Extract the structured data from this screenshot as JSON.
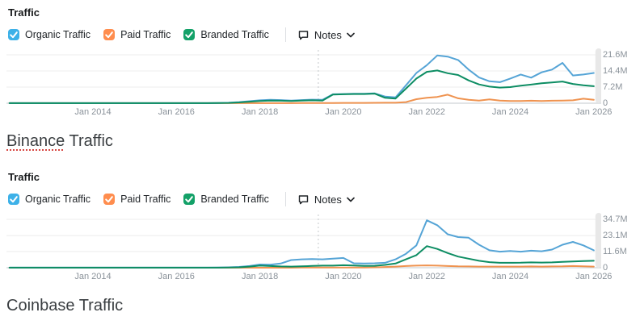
{
  "colors": {
    "organic_checkbox": "#3db1e8",
    "paid_checkbox": "#ff8d4e",
    "branded_checkbox": "#13a168",
    "organic_line": "#55a4d6",
    "paid_line": "#ef9350",
    "branded_line": "#0d8d63",
    "grid": "#ececec",
    "axis_line": "#cfd3d6",
    "axis_text": "#8a929a",
    "note_line": "#c4c9cc",
    "misspell_underline": "#d64541",
    "range_handle": "#e8e8e8"
  },
  "ui": {
    "sections": [
      {
        "panel_title": "Traffic",
        "legend": [
          "Organic Traffic",
          "Paid Traffic",
          "Branded Traffic"
        ],
        "notes_label": "Notes",
        "heading_word1": "Binance",
        "heading_word2": " Traffic"
      },
      {
        "panel_title": "Traffic",
        "legend": [
          "Organic Traffic",
          "Paid Traffic",
          "Branded Traffic"
        ],
        "notes_label": "Notes",
        "heading_word1": "Coinbase",
        "heading_word2": " Traffic"
      }
    ]
  },
  "chart_data": [
    {
      "type": "line",
      "title": "Traffic",
      "section_heading": "Binance Traffic",
      "unit": "visits, millions",
      "x_start": 2012.0,
      "x_step": 0.25,
      "x_tick_labels": [
        "Jan 2014",
        "Jan 2016",
        "Jan 2018",
        "Jan 2020",
        "Jan 2022",
        "Jan 2024",
        "Jan 2026"
      ],
      "x_tick_years": [
        2014,
        2016,
        2018,
        2020,
        2022,
        2024,
        2026
      ],
      "y_tick_labels": [
        "21.6M",
        "14.4M",
        "7.2M",
        "0"
      ],
      "y_tick_values_millions": [
        21.6,
        14.4,
        7.2,
        0
      ],
      "ylim_millions": [
        0,
        21.6
      ],
      "note_marker_year": 2019.4,
      "grid": "horizontal",
      "legend_position": "top",
      "series": [
        {
          "name": "Organic Traffic",
          "color_key": "organic_line",
          "values_millions": [
            0.05,
            0.05,
            0.05,
            0.05,
            0.05,
            0.05,
            0.05,
            0.05,
            0.05,
            0.05,
            0.05,
            0.05,
            0.05,
            0.05,
            0.05,
            0.05,
            0.05,
            0.05,
            0.05,
            0.05,
            0.1,
            0.2,
            0.5,
            0.9,
            1.3,
            1.5,
            1.4,
            1.2,
            1.4,
            1.6,
            1.5,
            4.0,
            4.1,
            4.2,
            4.2,
            4.4,
            3.0,
            2.6,
            8.0,
            13.5,
            17.0,
            21.3,
            20.8,
            19.3,
            15.0,
            11.5,
            9.8,
            9.4,
            11.0,
            12.8,
            11.4,
            13.8,
            15.0,
            18.0,
            12.4,
            12.8,
            13.5
          ]
        },
        {
          "name": "Paid Traffic",
          "color_key": "paid_line",
          "values_millions": [
            0.02,
            0.02,
            0.02,
            0.02,
            0.02,
            0.02,
            0.02,
            0.02,
            0.02,
            0.02,
            0.02,
            0.02,
            0.02,
            0.02,
            0.02,
            0.02,
            0.02,
            0.02,
            0.02,
            0.02,
            0.02,
            0.02,
            0.02,
            0.02,
            0.02,
            0.02,
            0.02,
            0.02,
            0.1,
            0.1,
            0.12,
            0.12,
            0.15,
            0.15,
            0.15,
            0.18,
            0.2,
            0.2,
            0.5,
            1.8,
            2.4,
            2.8,
            3.8,
            2.2,
            1.5,
            1.2,
            1.7,
            1.2,
            1.0,
            1.0,
            1.1,
            1.0,
            1.1,
            1.2,
            1.3,
            2.0,
            1.5
          ]
        },
        {
          "name": "Branded Traffic",
          "color_key": "branded_line",
          "values_millions": [
            0.03,
            0.03,
            0.03,
            0.03,
            0.03,
            0.03,
            0.03,
            0.03,
            0.03,
            0.03,
            0.03,
            0.03,
            0.03,
            0.03,
            0.03,
            0.03,
            0.03,
            0.03,
            0.03,
            0.03,
            0.08,
            0.15,
            0.35,
            0.7,
            1.0,
            1.2,
            1.1,
            1.0,
            1.2,
            1.3,
            1.2,
            3.9,
            4.0,
            4.1,
            4.1,
            4.3,
            2.4,
            2.1,
            6.5,
            11.0,
            14.0,
            14.6,
            13.4,
            12.6,
            10.2,
            8.4,
            7.4,
            7.0,
            7.2,
            7.8,
            8.3,
            8.9,
            9.3,
            9.7,
            8.6,
            8.0,
            7.6
          ]
        }
      ]
    },
    {
      "type": "line",
      "title": "Traffic",
      "section_heading": "Coinbase Traffic",
      "unit": "visits, millions",
      "x_start": 2012.0,
      "x_step": 0.25,
      "x_tick_labels": [
        "Jan 2014",
        "Jan 2016",
        "Jan 2018",
        "Jan 2020",
        "Jan 2022",
        "Jan 2024",
        "Jan 2026"
      ],
      "x_tick_years": [
        2014,
        2016,
        2018,
        2020,
        2022,
        2024,
        2026
      ],
      "y_tick_labels": [
        "34.7M",
        "23.1M",
        "11.6M",
        "0"
      ],
      "y_tick_values_millions": [
        34.7,
        23.1,
        11.6,
        0
      ],
      "ylim_millions": [
        0,
        34.7
      ],
      "note_marker_year": 2019.4,
      "grid": "horizontal",
      "legend_position": "top",
      "series": [
        {
          "name": "Organic Traffic",
          "color_key": "organic_line",
          "values_millions": [
            0.05,
            0.05,
            0.05,
            0.05,
            0.05,
            0.05,
            0.05,
            0.05,
            0.05,
            0.05,
            0.05,
            0.05,
            0.05,
            0.05,
            0.05,
            0.05,
            0.05,
            0.05,
            0.05,
            0.05,
            0.1,
            0.3,
            0.6,
            1.2,
            2.3,
            2.2,
            3.0,
            5.5,
            6.0,
            6.2,
            6.0,
            6.5,
            7.0,
            3.2,
            3.0,
            3.2,
            3.5,
            6.0,
            10.0,
            16.0,
            34.0,
            30.5,
            24.0,
            22.0,
            21.5,
            16.5,
            12.5,
            11.5,
            12.0,
            11.5,
            12.2,
            11.8,
            13.0,
            16.5,
            18.5,
            16.0,
            12.5
          ]
        },
        {
          "name": "Paid Traffic",
          "color_key": "paid_line",
          "values_millions": [
            0.02,
            0.02,
            0.02,
            0.02,
            0.02,
            0.02,
            0.02,
            0.02,
            0.02,
            0.02,
            0.02,
            0.02,
            0.02,
            0.02,
            0.02,
            0.02,
            0.02,
            0.02,
            0.02,
            0.02,
            0.02,
            0.02,
            0.02,
            0.02,
            0.02,
            0.02,
            0.02,
            0.02,
            0.1,
            0.1,
            0.1,
            0.12,
            0.2,
            0.2,
            0.2,
            0.3,
            0.5,
            0.8,
            1.2,
            1.5,
            1.7,
            1.5,
            1.2,
            1.0,
            0.9,
            0.8,
            0.8,
            0.8,
            0.8,
            0.8,
            0.9,
            0.8,
            0.9,
            1.0,
            1.2,
            1.0,
            0.8
          ]
        },
        {
          "name": "Branded Traffic",
          "color_key": "branded_line",
          "values_millions": [
            0.03,
            0.03,
            0.03,
            0.03,
            0.03,
            0.03,
            0.03,
            0.03,
            0.03,
            0.03,
            0.03,
            0.03,
            0.03,
            0.03,
            0.03,
            0.03,
            0.03,
            0.03,
            0.03,
            0.03,
            0.05,
            0.1,
            0.3,
            0.8,
            1.5,
            1.2,
            0.9,
            0.8,
            1.0,
            1.3,
            1.5,
            1.5,
            1.8,
            1.6,
            1.3,
            1.4,
            2.0,
            3.0,
            6.0,
            9.0,
            15.5,
            13.5,
            10.5,
            8.0,
            6.5,
            5.0,
            4.0,
            3.5,
            3.5,
            3.6,
            3.8,
            3.7,
            3.8,
            4.2,
            4.5,
            4.8,
            5.0
          ]
        }
      ]
    }
  ]
}
